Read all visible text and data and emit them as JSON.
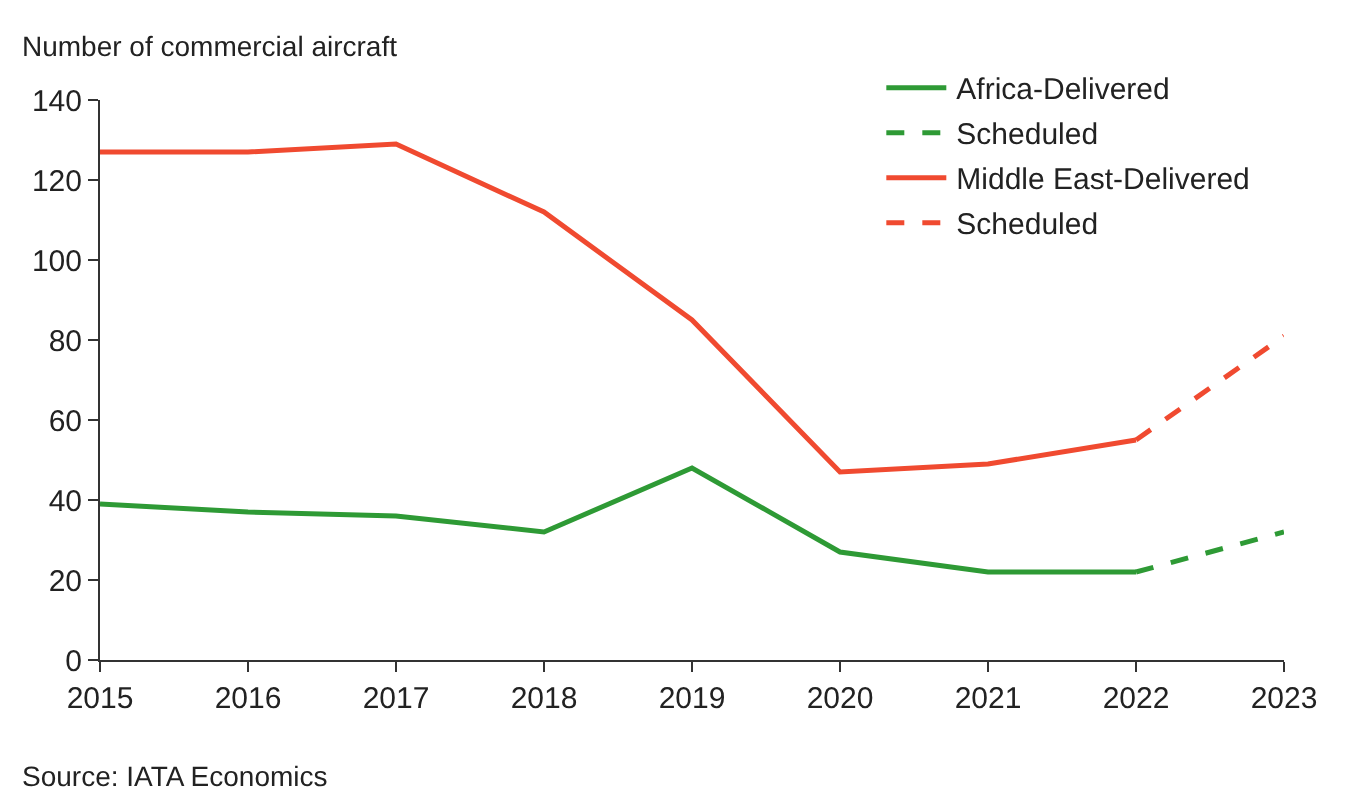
{
  "chart_data": {
    "type": "line",
    "ylabel": "Number of commercial aircraft",
    "annotations": [
      "Source: IATA Economics"
    ],
    "xlim": [
      2015,
      2023
    ],
    "xticks": [
      2015,
      2016,
      2017,
      2018,
      2019,
      2020,
      2021,
      2022,
      2023
    ],
    "ylim": [
      0,
      140
    ],
    "yticks": [
      0,
      20,
      40,
      60,
      80,
      100,
      120,
      140
    ],
    "legend": "top right",
    "marker": "none",
    "series": [
      {
        "name": "Africa-Delivered",
        "color": "#2e9a35",
        "line_style": "solid",
        "x": [
          2015,
          2016,
          2017,
          2018,
          2019,
          2020,
          2021,
          2022
        ],
        "values": [
          39,
          37,
          36,
          32,
          48,
          27,
          22,
          22
        ]
      },
      {
        "name": "Scheduled",
        "color": "#2e9a35",
        "line_style": "dashed",
        "x": [
          2022,
          2023
        ],
        "values": [
          22,
          32
        ]
      },
      {
        "name": "Middle East-Delivered",
        "color": "#f04a30",
        "line_style": "solid",
        "x": [
          2015,
          2016,
          2017,
          2018,
          2019,
          2020,
          2021,
          2022
        ],
        "values": [
          127,
          127,
          129,
          112,
          85,
          47,
          49,
          55
        ]
      },
      {
        "name": "Scheduled",
        "color": "#f04a30",
        "line_style": "dashed",
        "x": [
          2022,
          2023
        ],
        "values": [
          55,
          81
        ]
      }
    ]
  }
}
